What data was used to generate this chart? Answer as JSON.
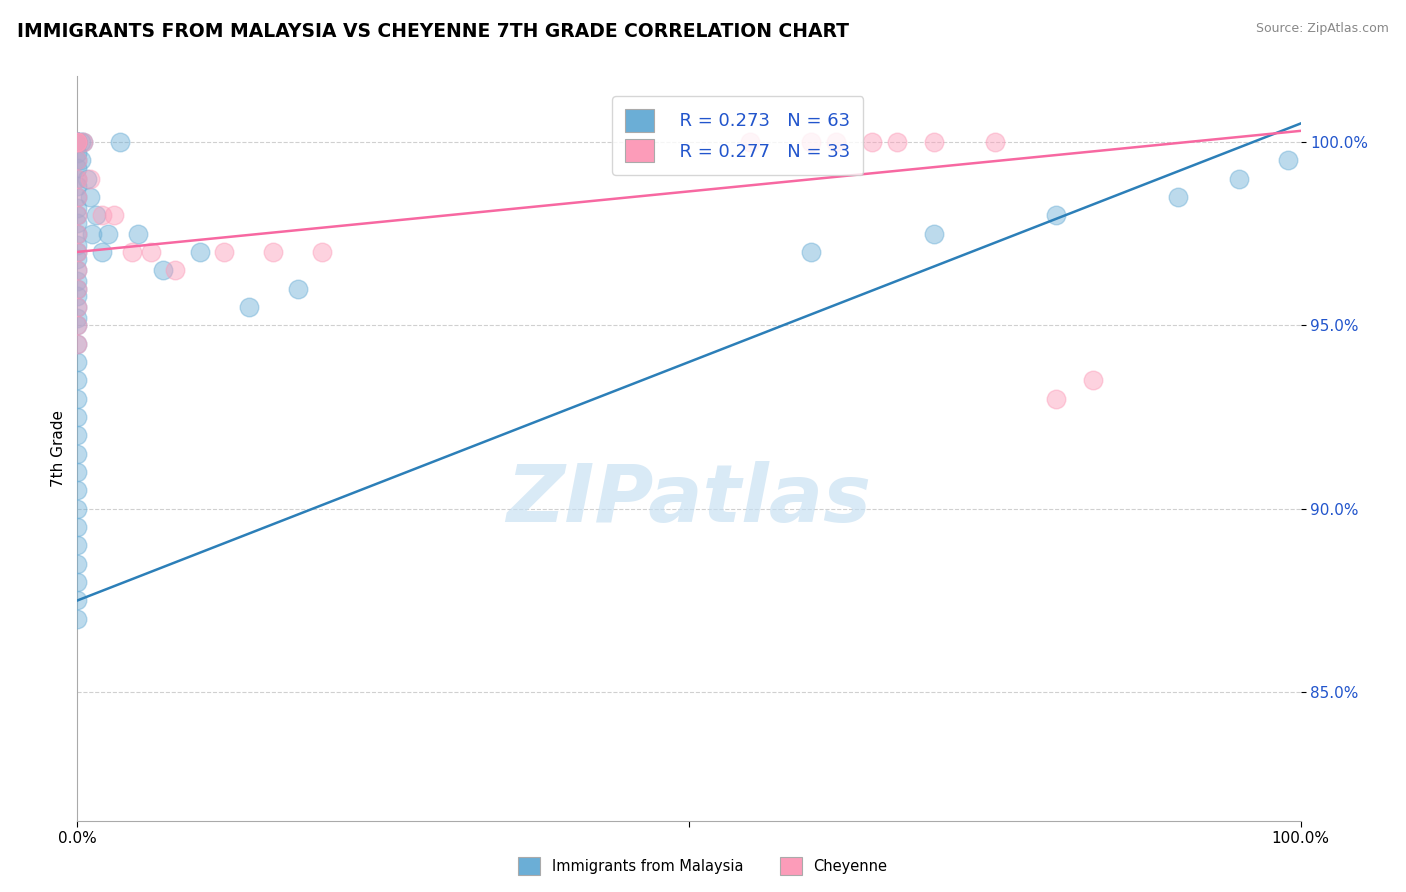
{
  "title": "IMMIGRANTS FROM MALAYSIA VS CHEYENNE 7TH GRADE CORRELATION CHART",
  "source": "Source: ZipAtlas.com",
  "ylabel": "7th Grade",
  "legend_blue_r": "R = 0.273",
  "legend_blue_n": "N = 63",
  "legend_pink_r": "R = 0.277",
  "legend_pink_n": "N = 33",
  "legend_label_blue": "Immigrants from Malaysia",
  "legend_label_pink": "Cheyenne",
  "watermark": "ZIPatlas",
  "xmin": 0.0,
  "xmax": 100.0,
  "ymin": 81.5,
  "ymax": 101.8,
  "ytick_vals": [
    85,
    90,
    95,
    100
  ],
  "ytick_labels": [
    "85.0%",
    "90.0%",
    "95.0%",
    "100.0%"
  ],
  "blue_color": "#6baed6",
  "pink_color": "#fc9cb9",
  "blue_line_color": "#2c7fb8",
  "pink_line_color": "#f768a1",
  "blue_scatter_x": [
    0,
    0,
    0,
    0,
    0,
    0,
    0,
    0,
    0,
    0,
    0,
    0,
    0,
    0,
    0,
    0,
    0,
    0,
    0,
    0,
    0,
    0,
    0,
    0,
    0,
    0,
    0,
    0,
    0,
    0,
    0,
    0,
    0,
    0,
    0,
    0,
    0,
    0,
    0,
    0,
    0,
    0,
    0.3,
    0.3,
    0.5,
    0.8,
    1.0,
    1.2,
    1.5,
    2.0,
    2.5,
    3.5,
    5.0,
    7.0,
    10.0,
    14.0,
    18.0,
    60.0,
    70.0,
    80.0,
    90.0,
    95.0,
    99.0
  ],
  "blue_scatter_y": [
    100,
    100,
    100,
    100,
    100,
    100,
    99.7,
    99.5,
    99.3,
    99,
    98.8,
    98.5,
    98.2,
    98,
    97.8,
    97.5,
    97.2,
    97,
    96.8,
    96.5,
    96.2,
    96,
    95.8,
    95.5,
    95.2,
    95,
    94.5,
    94,
    93.5,
    93,
    92.5,
    92,
    91.5,
    91,
    90.5,
    90,
    89.5,
    89,
    88.5,
    88,
    87.5,
    87,
    100,
    99.5,
    100,
    99,
    98.5,
    97.5,
    98,
    97,
    97.5,
    100,
    97.5,
    96.5,
    97,
    95.5,
    96,
    97,
    97.5,
    98,
    98.5,
    99,
    99.5
  ],
  "pink_scatter_x": [
    0,
    0,
    0,
    0,
    0,
    0,
    0,
    0,
    0,
    0,
    0,
    0,
    0,
    0,
    0.5,
    1.0,
    2.0,
    3.0,
    4.5,
    6.0,
    8.0,
    12.0,
    16.0,
    20.0,
    55.0,
    60.0,
    62.0,
    65.0,
    67.0,
    70.0,
    75.0,
    80.0,
    83.0
  ],
  "pink_scatter_y": [
    100,
    100,
    100,
    99.5,
    99,
    98.5,
    98,
    97.5,
    97,
    96.5,
    96,
    95.5,
    95,
    94.5,
    100,
    99,
    98,
    98,
    97,
    97,
    96.5,
    97,
    97,
    97,
    100,
    100,
    100,
    100,
    100,
    100,
    100,
    93,
    93.5
  ],
  "blue_trend_x": [
    0,
    100
  ],
  "blue_trend_y": [
    87.5,
    100.5
  ],
  "pink_trend_x": [
    0,
    100
  ],
  "pink_trend_y": [
    97.0,
    100.3
  ]
}
